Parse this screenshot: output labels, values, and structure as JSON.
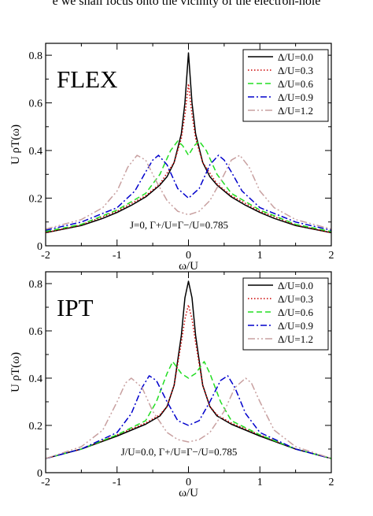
{
  "header_text": "e we shall focus onto the vicinity of the electron-hole",
  "colors": {
    "s0": "#000000",
    "s1": "#cc0000",
    "s2": "#22dd22",
    "s3": "#0000cc",
    "s4": "#c8a0a0"
  },
  "chart_data": [
    {
      "type": "line",
      "panel_label": "FLEX",
      "title": "",
      "xlabel": "ω/U",
      "ylabel": "U ρT(ω)",
      "xlim": [
        -2,
        2
      ],
      "ylim": [
        0,
        0.85
      ],
      "x_ticks": [
        -2,
        -1,
        0,
        1,
        2
      ],
      "y_ticks": [
        0,
        0.2,
        0.4,
        0.6,
        0.8
      ],
      "minor_x_step": 0.5,
      "minor_y_step": 0.1,
      "grid": false,
      "legend_position": "top-right",
      "annotation": "J=0, Γ+/U=Γ−/U=0.785",
      "series": [
        {
          "name": "Δ/U=0.0",
          "color_key": "s0",
          "dash": "solid",
          "x": [
            -2,
            -1.5,
            -1.2,
            -1,
            -0.8,
            -0.6,
            -0.4,
            -0.3,
            -0.2,
            -0.1,
            -0.05,
            0,
            0.05,
            0.1,
            0.2,
            0.3,
            0.4,
            0.6,
            0.8,
            1,
            1.2,
            1.5,
            2
          ],
          "y": [
            0.055,
            0.085,
            0.115,
            0.14,
            0.17,
            0.205,
            0.255,
            0.29,
            0.35,
            0.47,
            0.6,
            0.81,
            0.6,
            0.47,
            0.35,
            0.29,
            0.255,
            0.205,
            0.17,
            0.14,
            0.115,
            0.085,
            0.055
          ]
        },
        {
          "name": "Δ/U=0.3",
          "color_key": "s1",
          "dash": "dotted",
          "x": [
            -2,
            -1.5,
            -1,
            -0.6,
            -0.4,
            -0.2,
            -0.1,
            -0.05,
            0,
            0.05,
            0.1,
            0.2,
            0.4,
            0.6,
            1,
            1.5,
            2
          ],
          "y": [
            0.055,
            0.088,
            0.145,
            0.21,
            0.26,
            0.35,
            0.45,
            0.55,
            0.68,
            0.55,
            0.45,
            0.35,
            0.26,
            0.21,
            0.145,
            0.088,
            0.055
          ]
        },
        {
          "name": "Δ/U=0.6",
          "color_key": "s2",
          "dash": "dashed",
          "x": [
            -2,
            -1.5,
            -1,
            -0.6,
            -0.4,
            -0.25,
            -0.15,
            -0.08,
            0,
            0.08,
            0.15,
            0.25,
            0.4,
            0.6,
            1,
            1.5,
            2
          ],
          "y": [
            0.06,
            0.09,
            0.15,
            0.22,
            0.3,
            0.4,
            0.44,
            0.42,
            0.38,
            0.42,
            0.44,
            0.4,
            0.3,
            0.22,
            0.15,
            0.09,
            0.06
          ]
        },
        {
          "name": "Δ/U=0.9",
          "color_key": "s3",
          "dash": "dashdot",
          "x": [
            -2,
            -1.5,
            -1,
            -0.75,
            -0.6,
            -0.5,
            -0.42,
            -0.3,
            -0.15,
            0,
            0.15,
            0.3,
            0.42,
            0.5,
            0.6,
            0.75,
            1,
            1.5,
            2
          ],
          "y": [
            0.065,
            0.1,
            0.16,
            0.23,
            0.31,
            0.36,
            0.38,
            0.34,
            0.24,
            0.2,
            0.24,
            0.34,
            0.38,
            0.36,
            0.31,
            0.23,
            0.16,
            0.1,
            0.065
          ]
        },
        {
          "name": "Δ/U=1.2",
          "color_key": "s4",
          "dash": "dashdotdot",
          "x": [
            -2,
            -1.5,
            -1.2,
            -1,
            -0.85,
            -0.72,
            -0.6,
            -0.45,
            -0.3,
            -0.15,
            0,
            0.15,
            0.3,
            0.45,
            0.6,
            0.72,
            0.85,
            1,
            1.2,
            1.5,
            2
          ],
          "y": [
            0.07,
            0.11,
            0.16,
            0.23,
            0.33,
            0.38,
            0.36,
            0.27,
            0.19,
            0.145,
            0.13,
            0.145,
            0.19,
            0.27,
            0.36,
            0.38,
            0.33,
            0.23,
            0.16,
            0.11,
            0.07
          ]
        }
      ]
    },
    {
      "type": "line",
      "panel_label": "IPT",
      "title": "",
      "xlabel": "ω/U",
      "ylabel": "U ρT(ω)",
      "xlim": [
        -2,
        2
      ],
      "ylim": [
        0,
        0.85
      ],
      "x_ticks": [
        -2,
        -1,
        0,
        1,
        2
      ],
      "y_ticks": [
        0,
        0.2,
        0.4,
        0.6,
        0.8
      ],
      "minor_x_step": 0.5,
      "minor_y_step": 0.1,
      "grid": false,
      "legend_position": "top-right",
      "annotation": "J/U=0.0, Γ+/U=Γ−/U=0.785",
      "series": [
        {
          "name": "Δ/U=0.0",
          "color_key": "s0",
          "dash": "solid",
          "x": [
            -2,
            -1.5,
            -1,
            -0.6,
            -0.4,
            -0.3,
            -0.2,
            -0.1,
            -0.05,
            0,
            0.05,
            0.1,
            0.2,
            0.3,
            0.4,
            0.6,
            1,
            1.5,
            2
          ],
          "y": [
            0.06,
            0.1,
            0.155,
            0.205,
            0.24,
            0.28,
            0.37,
            0.58,
            0.74,
            0.81,
            0.74,
            0.58,
            0.37,
            0.28,
            0.24,
            0.205,
            0.155,
            0.1,
            0.06
          ]
        },
        {
          "name": "Δ/U=0.3",
          "color_key": "s1",
          "dash": "dotted",
          "x": [
            -2,
            -1.5,
            -1,
            -0.6,
            -0.4,
            -0.3,
            -0.2,
            -0.1,
            -0.05,
            0,
            0.05,
            0.1,
            0.2,
            0.3,
            0.4,
            0.6,
            1,
            1.5,
            2
          ],
          "y": [
            0.06,
            0.1,
            0.16,
            0.21,
            0.245,
            0.28,
            0.37,
            0.55,
            0.65,
            0.71,
            0.65,
            0.55,
            0.37,
            0.28,
            0.245,
            0.21,
            0.16,
            0.1,
            0.06
          ]
        },
        {
          "name": "Δ/U=0.6",
          "color_key": "s2",
          "dash": "dashed",
          "x": [
            -2,
            -1.5,
            -1,
            -0.6,
            -0.45,
            -0.3,
            -0.22,
            -0.1,
            0,
            0.1,
            0.22,
            0.3,
            0.45,
            0.6,
            1,
            1.5,
            2
          ],
          "y": [
            0.06,
            0.1,
            0.16,
            0.22,
            0.3,
            0.42,
            0.47,
            0.42,
            0.4,
            0.42,
            0.47,
            0.42,
            0.3,
            0.22,
            0.16,
            0.1,
            0.06
          ]
        },
        {
          "name": "Δ/U=0.9",
          "color_key": "s3",
          "dash": "dashdot",
          "x": [
            -2,
            -1.5,
            -1,
            -0.8,
            -0.65,
            -0.55,
            -0.45,
            -0.3,
            -0.15,
            0,
            0.15,
            0.3,
            0.45,
            0.55,
            0.65,
            0.8,
            1,
            1.5,
            2
          ],
          "y": [
            0.06,
            0.1,
            0.17,
            0.25,
            0.36,
            0.41,
            0.39,
            0.3,
            0.22,
            0.2,
            0.22,
            0.3,
            0.39,
            0.41,
            0.36,
            0.25,
            0.17,
            0.1,
            0.06
          ]
        },
        {
          "name": "Δ/U=1.2",
          "color_key": "s4",
          "dash": "dashdotdot",
          "x": [
            -2,
            -1.5,
            -1.2,
            -1,
            -0.88,
            -0.8,
            -0.65,
            -0.5,
            -0.3,
            -0.15,
            0,
            0.15,
            0.3,
            0.5,
            0.65,
            0.8,
            0.88,
            1,
            1.2,
            1.5,
            2
          ],
          "y": [
            0.06,
            0.11,
            0.18,
            0.3,
            0.38,
            0.4,
            0.36,
            0.26,
            0.17,
            0.14,
            0.13,
            0.14,
            0.17,
            0.26,
            0.36,
            0.4,
            0.38,
            0.3,
            0.18,
            0.11,
            0.06
          ]
        }
      ]
    }
  ]
}
